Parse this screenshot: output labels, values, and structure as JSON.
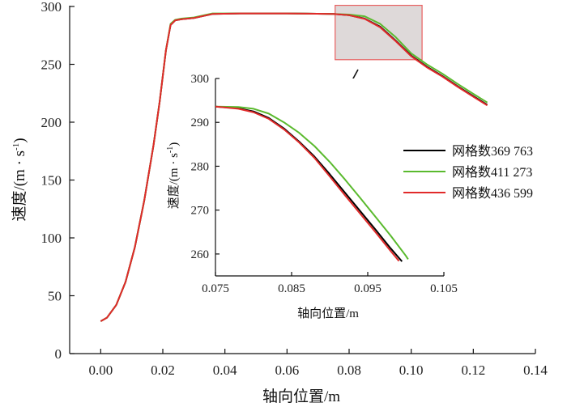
{
  "chart_data": {
    "type": "line",
    "xlabel": "轴向位置/m",
    "ylabel": "速度/(m·s⁻¹)",
    "ylabel_parts": [
      "速度/",
      "(m · s",
      "-1",
      ")"
    ],
    "xlim": [
      -0.01,
      0.14
    ],
    "ylim": [
      0,
      300
    ],
    "xticks": [
      "0.00",
      "0.02",
      "0.04",
      "0.06",
      "0.08",
      "0.10",
      "0.12",
      "0.14"
    ],
    "yticks": [
      "0",
      "50",
      "100",
      "150",
      "200",
      "250",
      "300"
    ],
    "legend_position": "right",
    "series": [
      {
        "name": "网格数369 763",
        "color": "#000000",
        "x": [
          0,
          0.002,
          0.005,
          0.008,
          0.011,
          0.014,
          0.017,
          0.019,
          0.021,
          0.0225,
          0.024,
          0.026,
          0.03,
          0.036,
          0.045,
          0.06,
          0.075,
          0.08,
          0.085,
          0.09,
          0.095,
          0.1,
          0.105,
          0.11,
          0.115,
          0.12,
          0.1245
        ],
        "y": [
          28,
          31,
          42,
          62,
          92,
          132,
          180,
          218,
          262,
          284,
          288,
          289,
          290,
          293.5,
          294,
          294,
          293.5,
          292.5,
          289.5,
          282.5,
          270.5,
          257.5,
          248,
          240,
          231,
          222.5,
          215
        ]
      },
      {
        "name": "网格数411 273",
        "color": "#5aba2e",
        "x": [
          0,
          0.002,
          0.005,
          0.008,
          0.011,
          0.014,
          0.017,
          0.019,
          0.021,
          0.0225,
          0.024,
          0.026,
          0.03,
          0.036,
          0.045,
          0.06,
          0.075,
          0.08,
          0.085,
          0.09,
          0.095,
          0.1,
          0.105,
          0.11,
          0.115,
          0.12,
          0.1245
        ],
        "y": [
          28,
          31,
          42,
          62,
          92,
          132,
          180,
          218,
          262,
          285,
          288.5,
          289.5,
          290.5,
          294,
          294,
          294,
          293.5,
          293,
          291.5,
          285,
          273.5,
          259.5,
          250,
          242,
          233,
          224.5,
          217
        ]
      },
      {
        "name": "网格数436 599",
        "color": "#e12a2a",
        "x": [
          0,
          0.002,
          0.005,
          0.008,
          0.011,
          0.014,
          0.017,
          0.019,
          0.021,
          0.0225,
          0.024,
          0.026,
          0.03,
          0.036,
          0.045,
          0.06,
          0.075,
          0.08,
          0.085,
          0.09,
          0.095,
          0.1,
          0.105,
          0.11,
          0.115,
          0.12,
          0.1245
        ],
        "y": [
          28,
          31,
          42,
          62,
          92,
          132,
          180,
          218,
          262,
          284,
          288,
          289,
          290,
          293.5,
          294,
          294,
          293.5,
          292.5,
          289.3,
          282,
          270,
          257,
          247.5,
          239.5,
          230.5,
          222,
          214.5
        ]
      }
    ],
    "zoom_region": {
      "x": [
        0.0755,
        0.1035
      ],
      "y": [
        254,
        301
      ]
    },
    "inset": {
      "xlabel": "轴向位置/m",
      "ylabel": "速度/(m·s⁻¹)",
      "ylabel_parts": [
        "速度/",
        "(m · s",
        "-1",
        ")"
      ],
      "xlim": [
        0.075,
        0.105
      ],
      "ylim": [
        255,
        300
      ],
      "xticks": [
        "0.075",
        "0.085",
        "0.095",
        "0.105"
      ],
      "yticks": [
        "260",
        "270",
        "280",
        "290",
        "300"
      ],
      "series": [
        {
          "name": "网格数369 763",
          "color": "#000000",
          "x": [
            0.075,
            0.078,
            0.08,
            0.082,
            0.084,
            0.086,
            0.088,
            0.09,
            0.092,
            0.094,
            0.096,
            0.098,
            0.0995
          ],
          "y": [
            293.6,
            293.2,
            292.5,
            291.0,
            288.6,
            285.6,
            282.2,
            278.2,
            274.0,
            269.8,
            265.6,
            261.3,
            258.3
          ]
        },
        {
          "name": "网格数411 273",
          "color": "#5aba2e",
          "x": [
            0.075,
            0.078,
            0.08,
            0.082,
            0.084,
            0.086,
            0.088,
            0.09,
            0.092,
            0.094,
            0.096,
            0.098,
            0.1,
            0.1003
          ],
          "y": [
            293.6,
            293.5,
            293.1,
            292.0,
            290.0,
            287.6,
            284.6,
            281.0,
            277.0,
            272.8,
            268.5,
            264.2,
            259.6,
            258.8
          ]
        },
        {
          "name": "网格数436 599",
          "color": "#e12a2a",
          "x": [
            0.075,
            0.078,
            0.08,
            0.082,
            0.084,
            0.086,
            0.088,
            0.09,
            0.092,
            0.094,
            0.096,
            0.098,
            0.0991
          ],
          "y": [
            293.6,
            293.1,
            292.3,
            290.8,
            288.4,
            285.4,
            281.9,
            277.7,
            273.4,
            269.2,
            265.0,
            260.7,
            258.4
          ]
        }
      ]
    }
  }
}
